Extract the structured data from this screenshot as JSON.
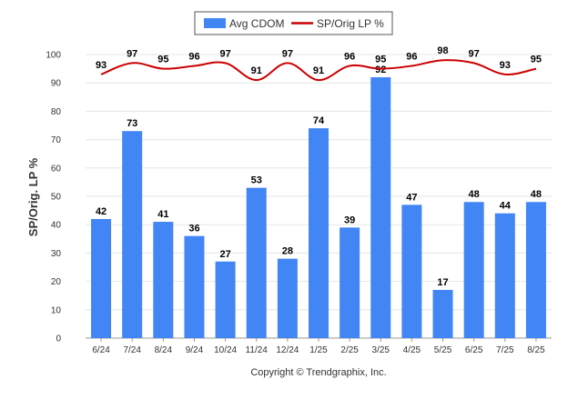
{
  "chart_data": {
    "type": "bar",
    "categories": [
      "6/24",
      "7/24",
      "8/24",
      "9/24",
      "10/24",
      "11/24",
      "12/24",
      "1/25",
      "2/25",
      "3/25",
      "4/25",
      "5/25",
      "6/25",
      "7/25",
      "8/25"
    ],
    "series": [
      {
        "name": "Avg CDOM",
        "kind": "bar",
        "color": "#4285f4",
        "values": [
          42,
          73,
          41,
          36,
          27,
          53,
          28,
          74,
          39,
          92,
          47,
          17,
          48,
          44,
          48
        ]
      },
      {
        "name": "SP/Orig LP %",
        "kind": "line",
        "color": "#cc0000",
        "values": [
          93,
          97,
          95,
          96,
          97,
          91,
          97,
          91,
          96,
          95,
          96,
          98,
          97,
          93,
          95
        ]
      }
    ],
    "title": "",
    "xlabel": "",
    "ylabel": "SP/Orig. LP %",
    "ylim": [
      0,
      100
    ],
    "yticks": [
      0,
      10,
      20,
      30,
      40,
      50,
      60,
      70,
      80,
      90,
      100
    ],
    "grid": true,
    "legend_position": "top-center"
  },
  "footer": "Copyright © Trendgraphix, Inc."
}
